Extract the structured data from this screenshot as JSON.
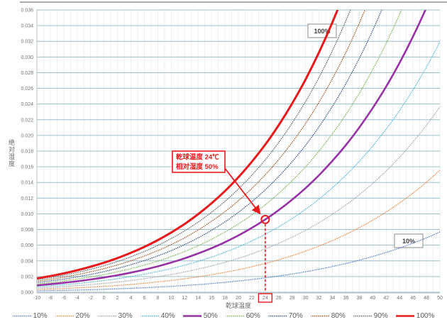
{
  "window": {
    "top_edge_color": "#ababab"
  },
  "chart_data": {
    "type": "line",
    "title": "",
    "xlabel": "乾球温度",
    "ylabel": "绝对湿度",
    "xlim": [
      -10,
      50
    ],
    "ylim": [
      0,
      0.036
    ],
    "x_tick_step": 2,
    "y_tick_step": 0.002,
    "y_tick_format_decimals": 3,
    "grid": "on",
    "legend_position": "bottom",
    "colors": {
      "grid_major": "#9cc0c8",
      "grid_minor": "#e3edf0",
      "axis_line": "#c2c2c2",
      "axis_text": "#737373",
      "legend_text": "#595959",
      "annotation": "#e8191c",
      "curve_label_border": "#9e9e9e",
      "curve_label_text": "#404040",
      "curve_label_fill": "#ffffff"
    },
    "x": [
      -10,
      -8,
      -6,
      -4,
      -2,
      0,
      2,
      4,
      6,
      8,
      10,
      12,
      14,
      16,
      18,
      20,
      22,
      24,
      26,
      28,
      30,
      32,
      34,
      36,
      38,
      40,
      42,
      44,
      46,
      48,
      50
    ],
    "series": [
      {
        "name": "10%",
        "color": "#4472c4",
        "line_style": "dotted",
        "width": 1.4,
        "values": [
          0.000176,
          0.000206,
          0.00024,
          0.000279,
          0.000324,
          0.000375,
          0.000433,
          0.000499,
          0.000574,
          0.000658,
          0.000754,
          0.000861,
          0.000981,
          0.001116,
          0.001267,
          0.001436,
          0.001624,
          0.001834,
          0.002066,
          0.002325,
          0.002612,
          0.002929,
          0.003279,
          0.003666,
          0.004092,
          0.00456,
          0.005075,
          0.00564,
          0.00626,
          0.006939,
          0.007681
        ]
      },
      {
        "name": "20%",
        "color": "#ed7d31",
        "line_style": "dotted",
        "width": 1.4,
        "values": [
          0.000352,
          0.000412,
          0.000481,
          0.000559,
          0.000649,
          0.000751,
          0.000867,
          0.000999,
          0.001149,
          0.001318,
          0.001509,
          0.001724,
          0.001965,
          0.002236,
          0.002539,
          0.002878,
          0.003256,
          0.003678,
          0.004147,
          0.004668,
          0.005245,
          0.005885,
          0.006593,
          0.007375,
          0.008238,
          0.009187,
          0.010234,
          0.011384,
          0.012647,
          0.014034,
          0.015554
        ]
      },
      {
        "name": "30%",
        "color": "#a0a0a0",
        "line_style": "dotted",
        "width": 1.4,
        "values": [
          0.000529,
          0.000618,
          0.000721,
          0.000839,
          0.000974,
          0.001127,
          0.001302,
          0.0015,
          0.001725,
          0.001979,
          0.002266,
          0.002589,
          0.002952,
          0.00336,
          0.003817,
          0.004327,
          0.004898,
          0.005533,
          0.006241,
          0.007027,
          0.007901,
          0.008869,
          0.009942,
          0.011128,
          0.012438,
          0.013885,
          0.015478,
          0.017234,
          0.019166,
          0.021291,
          0.023626
        ]
      },
      {
        "name": "40%",
        "color": "#45afd6",
        "line_style": "dotted",
        "width": 1.4,
        "values": [
          0.000705,
          0.000825,
          0.000962,
          0.001119,
          0.001299,
          0.001504,
          0.001737,
          0.002002,
          0.002302,
          0.002642,
          0.003025,
          0.003457,
          0.003943,
          0.004488,
          0.005099,
          0.005783,
          0.006547,
          0.0074,
          0.008348,
          0.009405,
          0.010579,
          0.011882,
          0.013327,
          0.014927,
          0.016696,
          0.018651,
          0.02081,
          0.023192,
          0.02582,
          0.028716,
          0.031906
        ]
      },
      {
        "name": "50%",
        "color": "#9632a4",
        "line_style": "solid",
        "width": 2.6,
        "values": [
          0.000881,
          0.001031,
          0.001203,
          0.0014,
          0.001624,
          0.001881,
          0.002173,
          0.002505,
          0.00288,
          0.003306,
          0.003786,
          0.004327,
          0.004936,
          0.00562,
          0.006387,
          0.007245,
          0.008206,
          0.009277,
          0.010471,
          0.011801,
          0.013281,
          0.014924,
          0.016749,
          0.018771,
          0.021011,
          0.023489,
          0.026232,
          0.029263,
          0.032613,
          0.036314,
          0.040401
        ]
      },
      {
        "name": "60%",
        "color": "#70ad47",
        "line_style": "dotted",
        "width": 1.4,
        "values": [
          0.001058,
          0.001238,
          0.001444,
          0.00168,
          0.00195,
          0.002258,
          0.002609,
          0.003008,
          0.00346,
          0.003971,
          0.004549,
          0.0052,
          0.005933,
          0.006756,
          0.007681,
          0.008715,
          0.009873,
          0.011166,
          0.012608,
          0.014215,
          0.016005,
          0.017996,
          0.020207,
          0.022662,
          0.025384,
          0.028402,
          0.031745,
          0.03545,
          0.039551,
          0.044091,
          0.049119
        ]
      },
      {
        "name": "70%",
        "color": "#264478",
        "line_style": "dotted",
        "width": 1.4,
        "values": [
          0.001235,
          0.001444,
          0.001685,
          0.001961,
          0.002277,
          0.002636,
          0.003046,
          0.003512,
          0.00404,
          0.004638,
          0.005313,
          0.006075,
          0.006932,
          0.007897,
          0.008979,
          0.010191,
          0.011549,
          0.013066,
          0.014759,
          0.016648,
          0.018753,
          0.021097,
          0.023704,
          0.026601,
          0.029818,
          0.03339,
          0.037354,
          0.041755,
          0.046637,
          0.051983,
          0.058069
        ]
      },
      {
        "name": "80%",
        "color": "#9e480e",
        "line_style": "dotted",
        "width": 1.4,
        "values": [
          0.001412,
          0.001651,
          0.001927,
          0.002242,
          0.002603,
          0.003015,
          0.003484,
          0.004017,
          0.004622,
          0.005306,
          0.00608,
          0.006952,
          0.007935,
          0.009041,
          0.010283,
          0.011675,
          0.013234,
          0.014977,
          0.016925,
          0.019099,
          0.021525,
          0.024228,
          0.027238,
          0.030588,
          0.034312,
          0.038454,
          0.04306,
          0.048182,
          0.053876,
          0.060211,
          0.067262
        ]
      },
      {
        "name": "90%",
        "color": "#595959",
        "line_style": "dotted",
        "width": 1.4,
        "values": [
          0.001588,
          0.001858,
          0.002168,
          0.002524,
          0.00293,
          0.003394,
          0.003922,
          0.004523,
          0.005204,
          0.005976,
          0.006848,
          0.007832,
          0.008941,
          0.01019,
          0.011593,
          0.013165,
          0.014928,
          0.0169,
          0.019106,
          0.02157,
          0.024321,
          0.02739,
          0.030811,
          0.034624,
          0.03887,
          0.043598,
          0.048865,
          0.054734,
          0.061274,
          0.068568,
          0.076706
        ]
      },
      {
        "name": "100%",
        "color": "#e8191c",
        "line_style": "solid",
        "width": 3,
        "values": [
          0.001766,
          0.002065,
          0.00241,
          0.002805,
          0.003258,
          0.003773,
          0.004361,
          0.005029,
          0.005788,
          0.006647,
          0.007618,
          0.008715,
          0.009951,
          0.011343,
          0.012907,
          0.014662,
          0.016631,
          0.018835,
          0.021301,
          0.024059,
          0.027141,
          0.030583,
          0.034424,
          0.03871,
          0.043491,
          0.048822,
          0.054772,
          0.061416,
          0.068836,
          0.077131,
          0.086414
        ]
      }
    ],
    "annotations": {
      "callout": {
        "lines": [
          "乾球温度 24℃",
          "相对湿度 50%"
        ]
      },
      "marker_point": {
        "x": 24,
        "y": 0.00928
      },
      "highlighted_x_tick": "24",
      "curve_labels": [
        "100%",
        "10%"
      ]
    },
    "legend_entries": [
      "10%",
      "20%",
      "30%",
      "40%",
      "50%",
      "60%",
      "70%",
      "80%",
      "90%",
      "100%"
    ]
  }
}
